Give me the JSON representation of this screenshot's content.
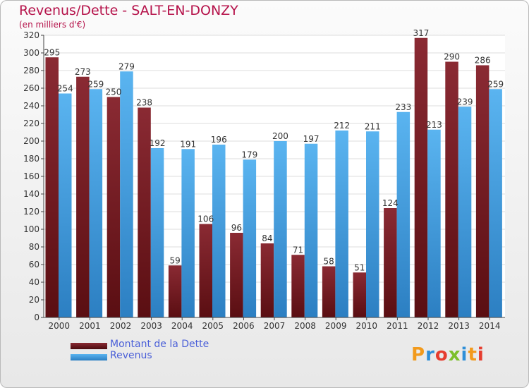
{
  "title": "Revenus/Dette - SALT-EN-DONZY",
  "subtitle": "(en milliers d'€)",
  "logo_text": "Proxiti",
  "colors": {
    "dette": "#7a1a24",
    "revenus": "#4aa8e8",
    "title": "#b5124a",
    "legend_text": "#4a5fd8"
  },
  "chart_data": {
    "type": "bar",
    "categories": [
      "2000",
      "2001",
      "2002",
      "2003",
      "2004",
      "2005",
      "2006",
      "2007",
      "2008",
      "2009",
      "2010",
      "2011",
      "2012",
      "2013",
      "2014"
    ],
    "series": [
      {
        "name": "Montant de la Dette",
        "values": [
          295,
          273,
          250,
          238,
          59,
          106,
          96,
          84,
          71,
          58,
          51,
          124,
          317,
          290,
          286
        ]
      },
      {
        "name": "Revenus",
        "values": [
          254,
          259,
          279,
          192,
          191,
          196,
          179,
          200,
          197,
          212,
          211,
          233,
          213,
          239,
          259
        ]
      }
    ],
    "title": "Revenus/Dette - SALT-EN-DONZY",
    "ylabel": "(en milliers d'€)",
    "ylim": [
      0,
      320
    ],
    "yticks": [
      0,
      20,
      40,
      60,
      80,
      100,
      120,
      140,
      160,
      180,
      200,
      220,
      240,
      260,
      280,
      300,
      320
    ],
    "grid": true,
    "legend": "bottom-left"
  }
}
